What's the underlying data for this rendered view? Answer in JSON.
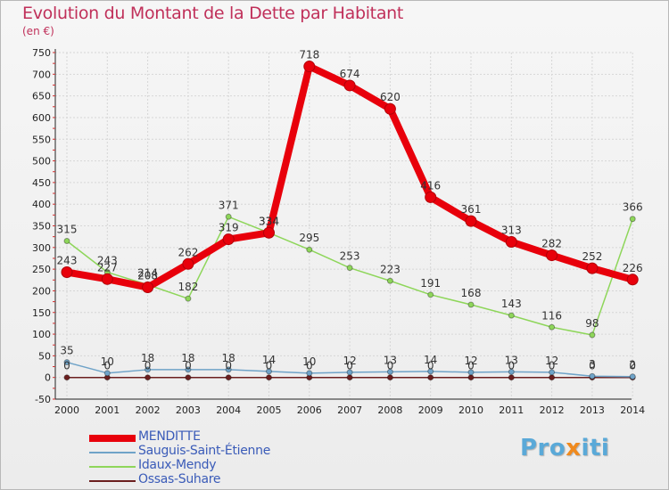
{
  "title": "Evolution du Montant de la Dette par Habitant",
  "unit_label": "(en €)",
  "brand": {
    "prefix": "Pro",
    "x": "x",
    "suffix": "iti"
  },
  "chart_data": {
    "type": "line",
    "title": "Evolution du Montant de la Dette par Habitant",
    "ylabel": "(en €)",
    "xlabel": "",
    "ylim": [
      -50,
      750
    ],
    "yticks": [
      -50,
      0,
      50,
      100,
      150,
      200,
      250,
      300,
      350,
      400,
      450,
      500,
      550,
      600,
      650,
      700,
      750
    ],
    "ytick_labels": [
      "-50",
      "0",
      "50",
      "100",
      "150",
      "200",
      "250",
      "300",
      "350",
      "400",
      "450",
      "500",
      "550",
      "600",
      "650",
      "700",
      "750"
    ],
    "categories": [
      "2000",
      "2001",
      "2002",
      "2003",
      "2004",
      "2005",
      "2006",
      "2007",
      "2008",
      "2009",
      "2010",
      "2011",
      "2012",
      "2013",
      "2014"
    ],
    "series": [
      {
        "name": "MENDITTE",
        "color": "#e8000b",
        "values": [
          243,
          227,
          208,
          262,
          319,
          334,
          718,
          674,
          620,
          416,
          361,
          313,
          282,
          252,
          226
        ]
      },
      {
        "name": "Sauguis-Saint-Étienne",
        "color": "#6fa3c8",
        "values": [
          35,
          10,
          18,
          18,
          18,
          14,
          10,
          12,
          13,
          14,
          12,
          13,
          12,
          3,
          2
        ]
      },
      {
        "name": "Idaux-Mendy",
        "color": "#8ed65a",
        "values": [
          315,
          243,
          214,
          182,
          371,
          334,
          295,
          253,
          223,
          191,
          168,
          143,
          116,
          98,
          366
        ]
      },
      {
        "name": "Ossas-Suhare",
        "color": "#6b1f1f",
        "values": [
          0,
          0,
          0,
          0,
          0,
          0,
          0,
          0,
          0,
          0,
          0,
          0,
          0,
          0,
          0
        ]
      }
    ],
    "legend_position": "bottom-left",
    "grid": true
  }
}
